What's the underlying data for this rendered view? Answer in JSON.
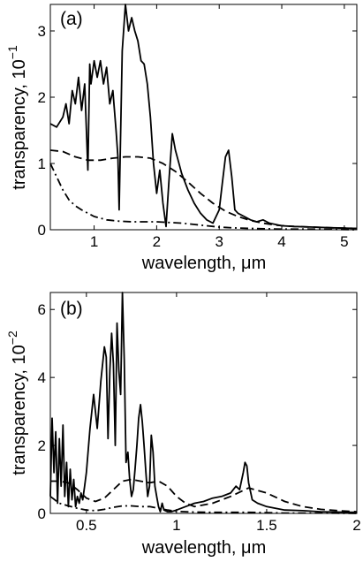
{
  "chart_data": [
    {
      "type": "line",
      "panel_label": "(a)",
      "title": "",
      "xlabel": "wavelength, μm",
      "ylabel_base": "transparency, 10",
      "ylabel_exp": "−1",
      "xlim": [
        0.3,
        5.2
      ],
      "ylim": [
        0,
        3.4
      ],
      "x_ticks": [
        1,
        2,
        3,
        4,
        5
      ],
      "x_tick_labels": [
        "1",
        "2",
        "3",
        "4",
        "5"
      ],
      "y_ticks": [
        0,
        1,
        2,
        3
      ],
      "y_tick_labels": [
        "0",
        "1",
        "2",
        "3"
      ],
      "grid": false,
      "series": [
        {
          "style": "solid",
          "x": [
            0.3,
            0.4,
            0.5,
            0.55,
            0.6,
            0.65,
            0.7,
            0.75,
            0.8,
            0.85,
            0.9,
            0.93,
            0.95,
            1.0,
            1.05,
            1.1,
            1.15,
            1.2,
            1.25,
            1.3,
            1.35,
            1.38,
            1.4,
            1.45,
            1.5,
            1.55,
            1.6,
            1.65,
            1.7,
            1.75,
            1.8,
            1.85,
            1.9,
            1.95,
            2.0,
            2.05,
            2.1,
            2.15,
            2.2,
            2.25,
            2.3,
            2.4,
            2.5,
            2.6,
            2.7,
            2.8,
            2.9,
            3.0,
            3.05,
            3.1,
            3.15,
            3.2,
            3.25,
            3.3,
            3.4,
            3.5,
            3.6,
            3.7,
            3.8,
            3.9,
            4.0,
            4.2,
            4.5,
            4.8,
            5.2
          ],
          "y": [
            1.6,
            1.55,
            1.7,
            1.9,
            1.6,
            2.1,
            1.9,
            2.3,
            1.8,
            2.2,
            0.9,
            2.5,
            2.2,
            2.55,
            2.3,
            2.55,
            2.2,
            2.45,
            1.9,
            2.1,
            1.5,
            1.1,
            0.3,
            2.7,
            3.4,
            3.0,
            3.2,
            3.0,
            2.85,
            2.55,
            2.5,
            2.2,
            1.7,
            1.0,
            0.55,
            0.9,
            0.4,
            0.05,
            0.8,
            1.45,
            1.2,
            0.85,
            0.6,
            0.4,
            0.25,
            0.15,
            0.1,
            0.3,
            0.7,
            1.1,
            1.2,
            0.8,
            0.3,
            0.25,
            0.2,
            0.15,
            0.12,
            0.15,
            0.1,
            0.08,
            0.06,
            0.05,
            0.04,
            0.03,
            0.02
          ]
        },
        {
          "style": "dashed",
          "x": [
            0.3,
            0.5,
            0.7,
            0.9,
            1.1,
            1.3,
            1.5,
            1.7,
            1.9,
            2.1,
            2.3,
            2.5,
            2.7,
            2.9,
            3.1,
            3.3,
            3.5,
            3.7,
            3.9,
            4.2,
            4.5,
            4.8,
            5.2
          ],
          "y": [
            1.2,
            1.18,
            1.1,
            1.05,
            1.05,
            1.08,
            1.1,
            1.1,
            1.08,
            1.0,
            0.88,
            0.72,
            0.55,
            0.4,
            0.28,
            0.2,
            0.14,
            0.1,
            0.07,
            0.05,
            0.04,
            0.03,
            0.02
          ]
        },
        {
          "style": "dashdot",
          "x": [
            0.3,
            0.4,
            0.5,
            0.6,
            0.7,
            0.8,
            0.9,
            1.0,
            1.2,
            1.4,
            1.6,
            1.8,
            2.0,
            2.2,
            2.4,
            2.6,
            2.8,
            3.0,
            3.2,
            3.5,
            4.0,
            4.5,
            5.2
          ],
          "y": [
            1.0,
            0.8,
            0.6,
            0.45,
            0.36,
            0.3,
            0.25,
            0.2,
            0.15,
            0.13,
            0.12,
            0.12,
            0.12,
            0.11,
            0.1,
            0.08,
            0.06,
            0.04,
            0.03,
            0.02,
            0.01,
            0.01,
            0.0
          ]
        }
      ]
    },
    {
      "type": "line",
      "panel_label": "(b)",
      "title": "",
      "xlabel": "wavelength, μm",
      "ylabel_base": "transparency, 10",
      "ylabel_exp": "−2",
      "xlim": [
        0.3,
        2.0
      ],
      "ylim": [
        0,
        6.5
      ],
      "x_ticks": [
        0.5,
        1,
        1.5,
        2
      ],
      "x_tick_labels": [
        "0.5",
        "1",
        "1.5",
        "2"
      ],
      "y_ticks": [
        0,
        2,
        4,
        6
      ],
      "y_tick_labels": [
        "0",
        "2",
        "4",
        "6"
      ],
      "grid": false,
      "series": [
        {
          "style": "solid",
          "x": [
            0.3,
            0.31,
            0.32,
            0.33,
            0.34,
            0.35,
            0.36,
            0.37,
            0.38,
            0.39,
            0.4,
            0.41,
            0.42,
            0.43,
            0.44,
            0.45,
            0.46,
            0.47,
            0.48,
            0.49,
            0.5,
            0.52,
            0.54,
            0.56,
            0.58,
            0.6,
            0.61,
            0.62,
            0.63,
            0.64,
            0.65,
            0.66,
            0.67,
            0.68,
            0.69,
            0.7,
            0.71,
            0.72,
            0.73,
            0.74,
            0.75,
            0.76,
            0.77,
            0.78,
            0.79,
            0.8,
            0.81,
            0.82,
            0.83,
            0.84,
            0.85,
            0.86,
            0.87,
            0.88,
            0.89,
            0.9,
            0.91,
            0.92,
            0.93,
            0.95,
            0.97,
            1.0,
            1.05,
            1.1,
            1.15,
            1.2,
            1.25,
            1.3,
            1.33,
            1.35,
            1.37,
            1.38,
            1.39,
            1.4,
            1.42,
            1.45,
            1.5,
            1.55,
            1.6,
            1.7,
            1.8,
            1.9,
            2.0
          ],
          "y": [
            0.5,
            2.8,
            1.2,
            2.4,
            0.3,
            2.2,
            0.8,
            2.6,
            0.5,
            1.5,
            0.2,
            1.3,
            0.4,
            1.0,
            0.2,
            0.5,
            0.3,
            0.6,
            0.4,
            0.8,
            1.2,
            2.5,
            3.5,
            2.5,
            3.9,
            4.9,
            4.6,
            2.2,
            4.2,
            5.3,
            4.4,
            2.0,
            5.6,
            4.2,
            3.5,
            6.5,
            4.5,
            1.5,
            1.8,
            1.0,
            0.5,
            0.7,
            1.3,
            2.0,
            2.8,
            3.2,
            2.7,
            2.0,
            1.2,
            0.5,
            0.8,
            2.3,
            1.8,
            0.8,
            0.5,
            0.2,
            0.05,
            0.3,
            0.1,
            0.05,
            0.05,
            0.1,
            0.2,
            0.3,
            0.35,
            0.45,
            0.5,
            0.6,
            0.8,
            0.7,
            1.2,
            1.5,
            1.4,
            0.9,
            0.4,
            0.3,
            0.2,
            0.15,
            0.1,
            0.08,
            0.05,
            0.04,
            0.03
          ]
        },
        {
          "style": "dashed",
          "x": [
            0.3,
            0.35,
            0.4,
            0.45,
            0.5,
            0.55,
            0.6,
            0.65,
            0.7,
            0.75,
            0.8,
            0.85,
            0.9,
            0.95,
            1.0,
            1.05,
            1.1,
            1.2,
            1.3,
            1.4,
            1.5,
            1.6,
            1.7,
            1.8,
            1.9,
            2.0
          ],
          "y": [
            0.95,
            0.95,
            0.9,
            0.7,
            0.45,
            0.35,
            0.45,
            0.7,
            0.95,
            1.0,
            0.95,
            0.9,
            0.95,
            0.8,
            0.5,
            0.3,
            0.2,
            0.3,
            0.5,
            0.75,
            0.6,
            0.35,
            0.2,
            0.12,
            0.08,
            0.05
          ]
        },
        {
          "style": "dashdot",
          "x": [
            0.3,
            0.35,
            0.4,
            0.45,
            0.5,
            0.55,
            0.6,
            0.65,
            0.7,
            0.75,
            0.8,
            0.85,
            0.9,
            0.95,
            1.0,
            1.1,
            1.2,
            1.3,
            1.4,
            1.5,
            1.6,
            1.8,
            2.0
          ],
          "y": [
            0.5,
            0.3,
            0.22,
            0.15,
            0.1,
            0.08,
            0.12,
            0.18,
            0.22,
            0.22,
            0.2,
            0.2,
            0.15,
            0.1,
            0.06,
            0.04,
            0.03,
            0.03,
            0.03,
            0.02,
            0.01,
            0.01,
            0.0
          ]
        }
      ]
    }
  ]
}
